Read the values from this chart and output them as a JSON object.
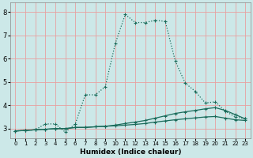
{
  "xlabel": "Humidex (Indice chaleur)",
  "background_color": "#cce8e8",
  "grid_color": "#e8a0a0",
  "line_color": "#1a6b5a",
  "x_values": [
    0,
    1,
    2,
    3,
    4,
    5,
    6,
    7,
    8,
    9,
    10,
    11,
    12,
    13,
    14,
    15,
    16,
    17,
    18,
    19,
    20,
    21,
    22,
    23
  ],
  "series_bottom": [
    2.9,
    2.92,
    2.95,
    2.97,
    3.0,
    3.0,
    3.05,
    3.05,
    3.08,
    3.1,
    3.12,
    3.15,
    3.18,
    3.22,
    3.28,
    3.33,
    3.38,
    3.42,
    3.46,
    3.5,
    3.52,
    3.45,
    3.38,
    3.35
  ],
  "series_middle": [
    2.9,
    2.92,
    2.95,
    2.97,
    3.0,
    3.0,
    3.05,
    3.05,
    3.08,
    3.1,
    3.15,
    3.22,
    3.28,
    3.35,
    3.45,
    3.55,
    3.65,
    3.72,
    3.78,
    3.85,
    3.9,
    3.78,
    3.6,
    3.42
  ],
  "series_top": [
    2.9,
    2.92,
    2.95,
    3.2,
    3.2,
    2.85,
    3.2,
    4.45,
    4.45,
    4.8,
    6.65,
    7.9,
    7.55,
    7.55,
    7.65,
    7.6,
    5.9,
    4.95,
    4.6,
    4.1,
    4.15,
    3.75,
    3.5,
    3.42
  ],
  "ylim": [
    2.6,
    8.4
  ],
  "xlim": [
    -0.5,
    23.5
  ],
  "yticks": [
    3,
    4,
    5,
    6,
    7,
    8
  ],
  "xticks": [
    0,
    1,
    2,
    3,
    4,
    5,
    6,
    7,
    8,
    9,
    10,
    11,
    12,
    13,
    14,
    15,
    16,
    17,
    18,
    19,
    20,
    21,
    22,
    23
  ],
  "xlabel_fontsize": 6.5,
  "tick_fontsize_x": 5.0,
  "tick_fontsize_y": 6.0
}
